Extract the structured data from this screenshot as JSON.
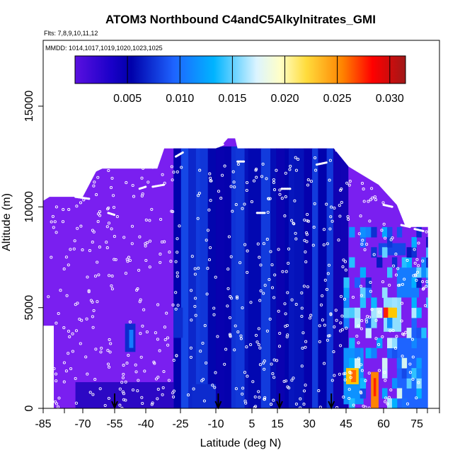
{
  "title": "ATOM3 Northbound C4andC5Alkylnitrates_GMI",
  "flights_line": "Flts: 7,8,9,10,11,12",
  "mmdd_line": "MMDD: 1014,1017,1019,1020,1023,1025",
  "colors": {
    "background": "#ffffff",
    "frame": "#000000",
    "bulk": "#7a1ff0",
    "navy": "#0000b4",
    "points": "#ffffff",
    "colorbar_stops": [
      "#5a10e0",
      "#0000aa",
      "#1e64ff",
      "#00b4ff",
      "#c8f0ff",
      "#ffffc0",
      "#ffc800",
      "#ff7800",
      "#ff0000",
      "#a01010"
    ]
  },
  "chart_data": {
    "type": "heatmap",
    "title": "ATOM3 Northbound C4andC5Alkylnitrates_GMI",
    "xlabel": "Latitude (deg N)",
    "ylabel": "Altitude (m)",
    "xlim": [
      -85,
      80
    ],
    "ylim": [
      0,
      17500
    ],
    "x_ticks": [
      -85,
      -70,
      -55,
      -40,
      -25,
      -10,
      5,
      15,
      30,
      45,
      60,
      75
    ],
    "y_ticks": [
      0,
      5000,
      10000,
      15000
    ],
    "colorbar": {
      "ticks": [
        0.005,
        0.01,
        0.015,
        0.02,
        0.025,
        0.03
      ],
      "tick_labels": [
        "0.005",
        "0.010",
        "0.015",
        "0.020",
        "0.025",
        "0.030"
      ],
      "range": [
        0,
        0.0315
      ]
    },
    "arrow_latitudes": [
      -55,
      -9,
      16,
      39
    ],
    "curtain_envelope": [
      [
        -85,
        10300
      ],
      [
        -82,
        10500
      ],
      [
        -70,
        10500
      ],
      [
        -63,
        11900
      ],
      [
        -35,
        11900
      ],
      [
        -32,
        12900
      ],
      [
        -10,
        12900
      ],
      [
        -8,
        13000
      ],
      [
        -5,
        13400
      ],
      [
        -2,
        13400
      ],
      [
        -1,
        12900
      ],
      [
        40,
        12900
      ],
      [
        46,
        12000
      ],
      [
        58,
        11100
      ],
      [
        66,
        10100
      ],
      [
        70,
        9000
      ],
      [
        80,
        9000
      ]
    ],
    "plateau": {
      "x": [
        -85,
        -80
      ],
      "bottom_altitude": 4100
    },
    "features": [
      {
        "x": [
          -28,
          45
        ],
        "y": [
          0,
          13000
        ],
        "value": 0.0045
      },
      {
        "x": [
          -50,
          -45
        ],
        "y": [
          2800,
          4200
        ],
        "value": 0.005
      },
      {
        "x": [
          -48,
          -46
        ],
        "y": [
          3000,
          3900
        ],
        "value": 0.008
      },
      {
        "x": [
          -28,
          -24
        ],
        "y": [
          3500,
          5000
        ],
        "value": 0.005
      },
      {
        "x": [
          -20,
          -10
        ],
        "y": [
          0,
          1200
        ],
        "value": 0.005
      },
      {
        "x": [
          44,
          52
        ],
        "y": [
          200,
          3000
        ],
        "value": 0.009
      },
      {
        "x": [
          45,
          50
        ],
        "y": [
          1200,
          2000
        ],
        "value": 0.021
      },
      {
        "x": [
          47,
          49
        ],
        "y": [
          1300,
          1900
        ],
        "value": 0.025
      },
      {
        "x": [
          55,
          58
        ],
        "y": [
          0,
          1800
        ],
        "value": 0.024
      },
      {
        "x": [
          56,
          57
        ],
        "y": [
          600,
          1500
        ],
        "value": 0.027
      },
      {
        "x": [
          60,
          68
        ],
        "y": [
          3800,
          5500
        ],
        "value": 0.013
      },
      {
        "x": [
          62,
          66
        ],
        "y": [
          4500,
          5000
        ],
        "value": 0.021
      },
      {
        "x": [
          60,
          62
        ],
        "y": [
          4500,
          5000
        ],
        "value": 0.027
      },
      {
        "x": [
          66,
          76
        ],
        "y": [
          5500,
          7000
        ],
        "value": 0.008
      },
      {
        "x": [
          66,
          80
        ],
        "y": [
          0,
          3500
        ],
        "value": 0.007
      },
      {
        "x": [
          58,
          70
        ],
        "y": [
          7600,
          8200
        ],
        "value": 0.006
      }
    ]
  }
}
